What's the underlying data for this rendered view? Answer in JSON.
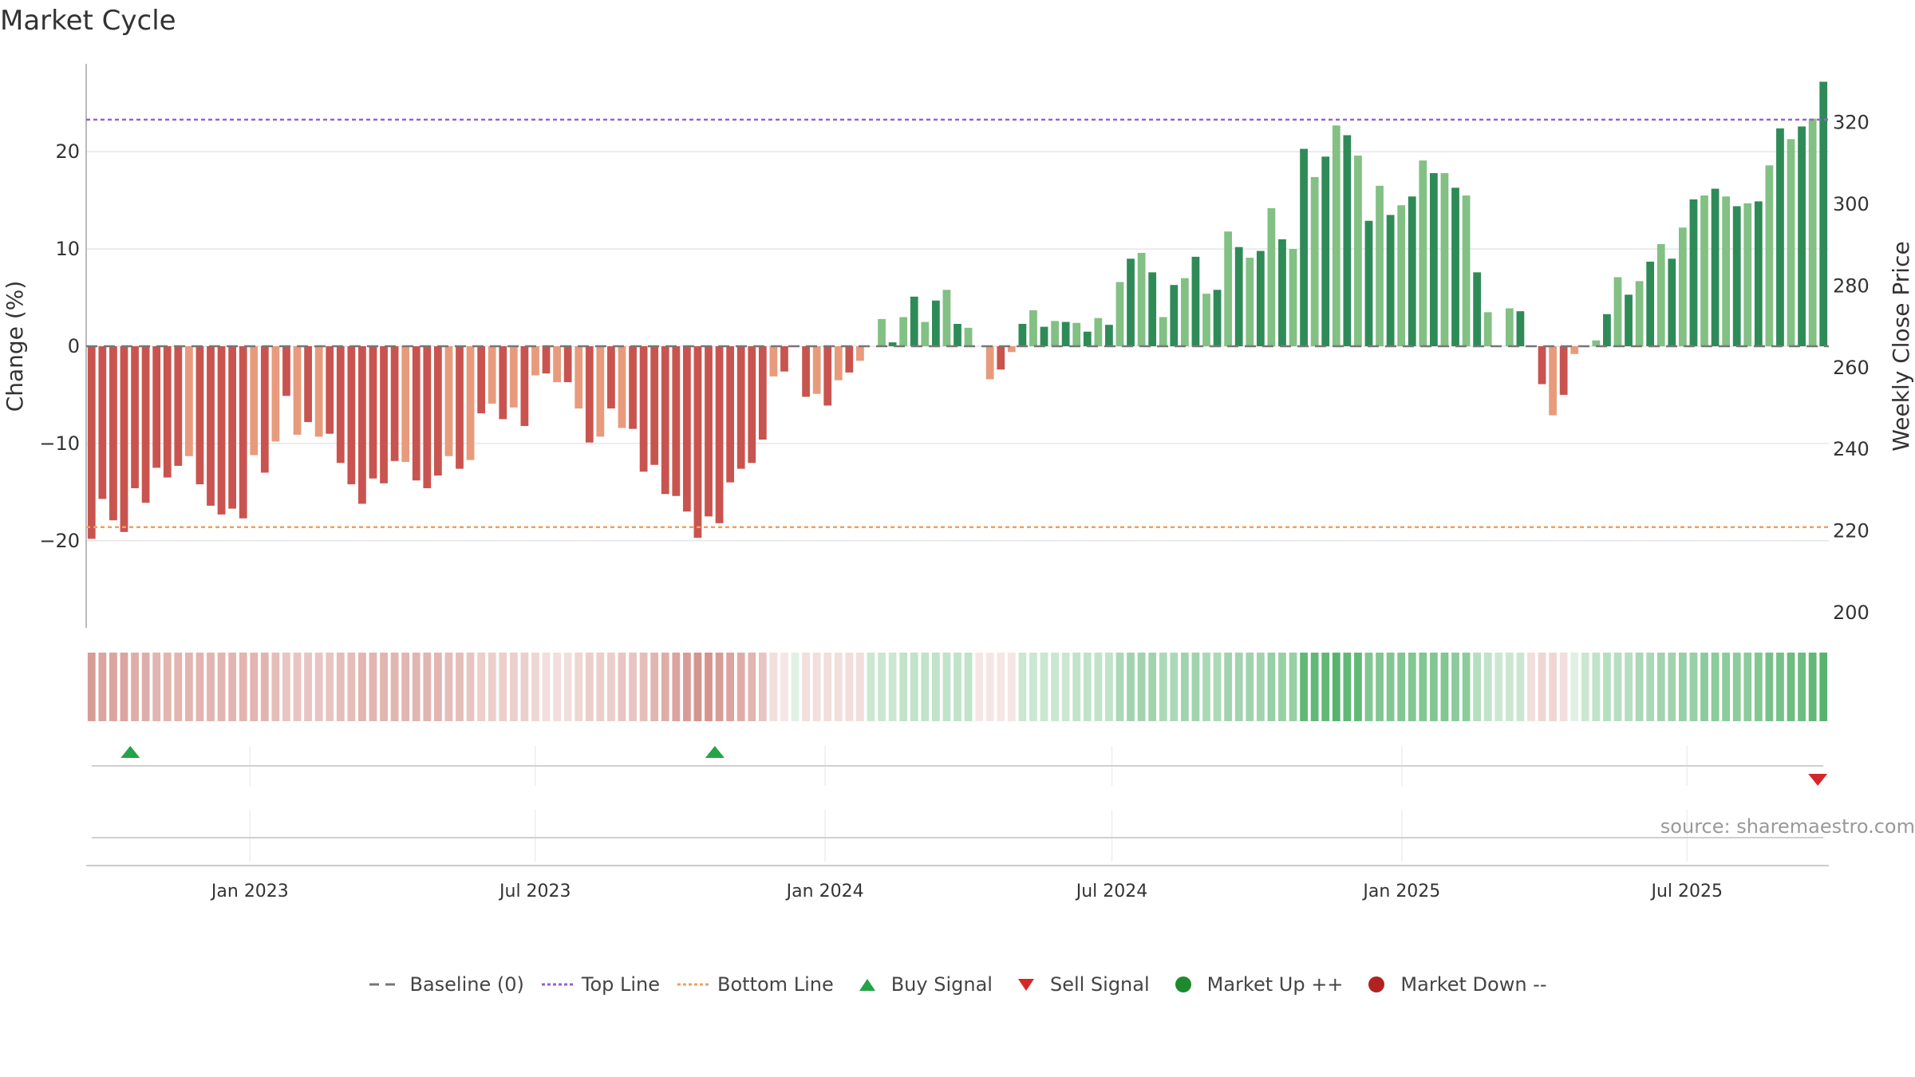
{
  "title": "Market Cycle",
  "source": "source: sharemaestro.com",
  "colors": {
    "dark_red": "#c9544f",
    "light_red": "#e89b7c",
    "dark_green": "#2e8b57",
    "light_green": "#82c084",
    "top_line": "#9a5fd0",
    "bottom_line": "#f0a060",
    "baseline": "#777777",
    "buy": "#22a447",
    "sell": "#d62728",
    "market_up": "#1e8a2e",
    "market_down": "#b22222"
  },
  "chart_data": {
    "type": "bar",
    "title": "Market Cycle",
    "ylabel_left": "Change (%)",
    "ylabel_right": "Weekly Close Price",
    "ylim_left": [
      -29,
      29
    ],
    "ylim_right": [
      200,
      325
    ],
    "yticks_left": [
      -20,
      -10,
      0,
      10,
      20
    ],
    "yticks_left_labels": [
      "−20",
      "−10",
      "0",
      "10",
      "20"
    ],
    "yticks_right": [
      200,
      220,
      240,
      260,
      280,
      300,
      320
    ],
    "x_start": "2022-09-19",
    "x_end": "2025-09-29",
    "x_ticks": [
      {
        "date": "2023-01-01",
        "label": "Jan 2023"
      },
      {
        "date": "2023-07-01",
        "label": "Jul 2023"
      },
      {
        "date": "2024-01-01",
        "label": "Jan 2024"
      },
      {
        "date": "2024-07-01",
        "label": "Jul 2024"
      },
      {
        "date": "2025-01-01",
        "label": "Jan 2025"
      },
      {
        "date": "2025-07-01",
        "label": "Jul 2025"
      }
    ],
    "top_line": 23.3,
    "bottom_line": -18.6,
    "weekly_change": [
      -19.8,
      -15.7,
      -17.9,
      -19.1,
      -14.6,
      -16.1,
      -12.5,
      -13.5,
      -12.3,
      -11.3,
      -14.2,
      -16.4,
      -17.3,
      -16.7,
      -17.7,
      -11.2,
      -13.0,
      -9.8,
      -5.1,
      -9.1,
      -7.8,
      -9.3,
      -9.0,
      -12.0,
      -14.2,
      -16.2,
      -13.6,
      -14.1,
      -11.8,
      -11.9,
      -13.8,
      -14.6,
      -13.3,
      -11.3,
      -12.6,
      -11.7,
      -6.9,
      -5.9,
      -7.5,
      -6.3,
      -8.2,
      -3.0,
      -2.8,
      -3.7,
      -3.7,
      -6.4,
      -9.9,
      -9.3,
      -6.4,
      -8.4,
      -8.5,
      -12.9,
      -12.2,
      -15.2,
      -15.4,
      -17.0,
      -19.7,
      -17.5,
      -18.2,
      -14.0,
      -12.6,
      -12.0,
      -9.6,
      -3.1,
      -2.6,
      0,
      -5.2,
      -4.9,
      -6.1,
      -3.5,
      -2.7,
      -1.5,
      0,
      2.8,
      0.4,
      3.0,
      5.1,
      2.5,
      4.7,
      5.8,
      2.3,
      1.9,
      0,
      -3.4,
      -2.4,
      -0.6,
      2.3,
      3.7,
      2.0,
      2.6,
      2.5,
      2.4,
      1.5,
      2.9,
      2.2,
      6.6,
      9.0,
      9.6,
      7.6,
      3.0,
      6.3,
      7.0,
      9.2,
      5.4,
      5.8,
      11.8,
      10.2,
      9.1,
      9.8,
      14.2,
      11.0,
      10.0,
      20.3,
      17.4,
      19.5,
      22.7,
      21.7,
      19.6,
      12.9,
      16.5,
      13.5,
      14.5,
      15.4,
      19.1,
      17.8,
      17.8,
      16.3,
      15.5,
      7.6,
      3.5,
      0,
      3.9,
      3.6,
      0,
      -3.9,
      -7.1,
      -5.0,
      -0.8,
      0,
      0.6,
      3.3,
      7.1,
      5.3,
      6.7,
      8.7,
      10.5,
      9.0,
      12.2,
      15.1,
      15.5,
      16.2,
      15.4,
      14.4,
      14.7,
      14.9,
      18.6,
      22.4,
      21.3,
      22.6,
      23.4,
      27.2
    ],
    "weekly_close_price": [],
    "heat_strip": [
      -0.6,
      -0.55,
      -0.55,
      -0.55,
      -0.5,
      -0.5,
      -0.45,
      -0.45,
      -0.45,
      -0.45,
      -0.45,
      -0.45,
      -0.45,
      -0.45,
      -0.45,
      -0.45,
      -0.45,
      -0.4,
      -0.35,
      -0.35,
      -0.35,
      -0.35,
      -0.35,
      -0.4,
      -0.4,
      -0.45,
      -0.45,
      -0.45,
      -0.45,
      -0.45,
      -0.45,
      -0.45,
      -0.45,
      -0.4,
      -0.4,
      -0.35,
      -0.3,
      -0.3,
      -0.3,
      -0.3,
      -0.3,
      -0.25,
      -0.2,
      -0.2,
      -0.2,
      -0.25,
      -0.3,
      -0.3,
      -0.3,
      -0.35,
      -0.35,
      -0.4,
      -0.45,
      -0.5,
      -0.55,
      -0.6,
      -0.65,
      -0.65,
      -0.6,
      -0.55,
      -0.5,
      -0.45,
      -0.35,
      -0.2,
      -0.15,
      0.15,
      -0.2,
      -0.2,
      -0.2,
      -0.2,
      -0.2,
      -0.2,
      0.25,
      0.25,
      0.25,
      0.3,
      0.3,
      0.3,
      0.3,
      0.3,
      0.3,
      0.3,
      -0.15,
      -0.15,
      -0.15,
      -0.15,
      0.25,
      0.25,
      0.25,
      0.25,
      0.25,
      0.3,
      0.3,
      0.3,
      0.3,
      0.4,
      0.45,
      0.45,
      0.45,
      0.4,
      0.4,
      0.45,
      0.45,
      0.4,
      0.4,
      0.45,
      0.45,
      0.45,
      0.45,
      0.5,
      0.5,
      0.5,
      0.75,
      0.75,
      0.75,
      0.8,
      0.75,
      0.75,
      0.6,
      0.6,
      0.6,
      0.6,
      0.6,
      0.6,
      0.6,
      0.6,
      0.55,
      0.55,
      0.35,
      0.3,
      0.25,
      0.25,
      0.25,
      -0.2,
      -0.25,
      -0.25,
      -0.2,
      0.15,
      0.25,
      0.3,
      0.35,
      0.35,
      0.35,
      0.4,
      0.4,
      0.45,
      0.45,
      0.5,
      0.5,
      0.55,
      0.55,
      0.55,
      0.55,
      0.55,
      0.6,
      0.65,
      0.65,
      0.7,
      0.7,
      0.75,
      0.8
    ],
    "buy_signals": [
      "2022-10-17",
      "2023-10-23"
    ],
    "sell_signals": [
      "2025-09-22"
    ]
  },
  "legend": [
    {
      "label": "Baseline (0)",
      "kind": "baseline",
      "color": "#777777"
    },
    {
      "label": "Top Line",
      "kind": "top",
      "color": "#9a5fd0"
    },
    {
      "label": "Bottom Line",
      "kind": "bottom",
      "color": "#f0a060"
    },
    {
      "label": "Buy Signal",
      "kind": "buy",
      "color": "#22a447"
    },
    {
      "label": "Sell Signal",
      "kind": "sell",
      "color": "#d62728"
    },
    {
      "label": "Market Up ++",
      "kind": "up",
      "color": "#1e8a2e"
    },
    {
      "label": "Market Down --",
      "kind": "down",
      "color": "#b22222"
    }
  ]
}
